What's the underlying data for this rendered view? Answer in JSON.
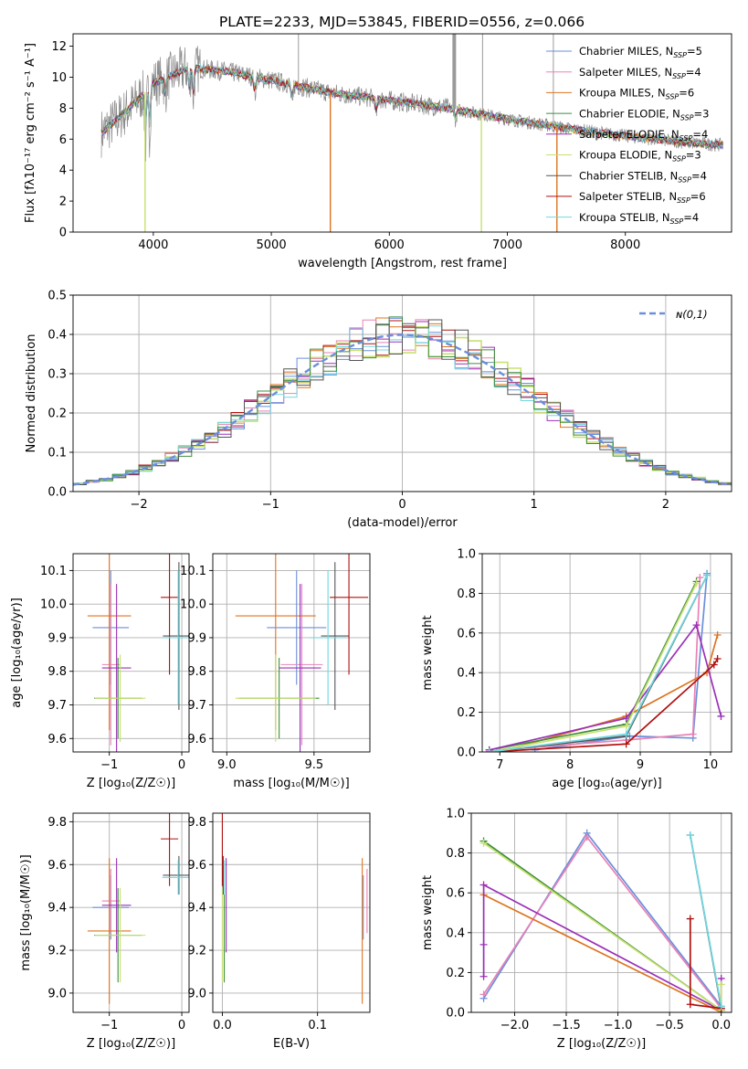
{
  "figure_title": "PLATE=2233, MJD=53845, FIBERID=0556, z=0.066",
  "models": [
    {
      "name": "Chabrier MILES",
      "nssp": "5",
      "color": "#6a8fdc"
    },
    {
      "name": "Salpeter MILES",
      "nssp": "4",
      "color": "#e882b6"
    },
    {
      "name": "Kroupa MILES",
      "nssp": "6",
      "color": "#dd7420"
    },
    {
      "name": "Chabrier ELODIE",
      "nssp": "3",
      "color": "#3c8f3c"
    },
    {
      "name": "Salpeter ELODIE",
      "nssp": "4",
      "color": "#9b30b8"
    },
    {
      "name": "Kroupa ELODIE",
      "nssp": "3",
      "color": "#c8e070"
    },
    {
      "name": "Chabrier STELIB",
      "nssp": "4",
      "color": "#555555"
    },
    {
      "name": "Salpeter STELIB",
      "nssp": "6",
      "color": "#b01010"
    },
    {
      "name": "Kroupa STELIB",
      "nssp": "4",
      "color": "#70d8e0"
    }
  ],
  "chart_data": [
    {
      "id": "spectrum",
      "type": "line",
      "title": "PLATE=2233, MJD=53845, FIBERID=0556, z=0.066",
      "xlabel": "wavelength [Angstrom, rest frame]",
      "ylabel": "Flux [fλ10⁻¹⁷ erg cm⁻² s⁻¹ A⁻¹]",
      "xlim": [
        3320,
        8900
      ],
      "ylim": [
        0,
        12.8
      ],
      "xticks": [
        4000,
        5000,
        6000,
        7000,
        8000
      ],
      "yticks": [
        0,
        2,
        4,
        6,
        8,
        10,
        12
      ],
      "continuum": {
        "x": [
          3560,
          3800,
          4000,
          4300,
          4600,
          5000,
          5500,
          6000,
          6500,
          7000,
          7500,
          8000,
          8500,
          8830
        ],
        "y": [
          6.4,
          8.0,
          9.6,
          10.6,
          10.4,
          9.8,
          9.0,
          8.5,
          8.0,
          7.3,
          6.7,
          6.2,
          5.8,
          5.6
        ]
      },
      "data_spikes": [
        {
          "x": 5230,
          "y": 12.8
        },
        {
          "x": 6550,
          "y": 12.8
        },
        {
          "x": 6790,
          "y": 12.8
        },
        {
          "x": 7390,
          "y": 12.8
        }
      ],
      "model_dips": [
        {
          "x": 3930,
          "y": 0,
          "color": "#c8e070"
        },
        {
          "x": 5500,
          "y": 0,
          "color": "#dd7420"
        },
        {
          "x": 6780,
          "y": 0,
          "color": "#c8e070"
        },
        {
          "x": 7420,
          "y": 0,
          "color": "#dd7420"
        }
      ],
      "grid": false,
      "legend_position": "top-right"
    },
    {
      "id": "residual-distribution",
      "type": "line",
      "xlabel": "(data-model)/error",
      "ylabel": "Normed distribution",
      "xlim": [
        -2.5,
        2.5
      ],
      "ylim": [
        0,
        0.5
      ],
      "xticks": [
        -2,
        -1,
        0,
        1,
        2
      ],
      "yticks": [
        0,
        0.1,
        0.2,
        0.3,
        0.4,
        0.5
      ],
      "grid": true,
      "legend": "ɴ(0,1)",
      "legend_position": "top-right",
      "reference_curve": "normal distribution, mean 0, sigma 1",
      "histogram_bin_width": 0.1
    },
    {
      "id": "age-vs-metallicity",
      "type": "scatter",
      "xlabel": "Z [log₁₀(Z/Z☉)]",
      "ylabel": "age  [log₁₀(age/yr)]",
      "xlim": [
        -1.5,
        0.1
      ],
      "ylim": [
        9.56,
        10.15
      ],
      "xticks": [
        -1,
        0
      ],
      "yticks": [
        9.6,
        9.7,
        9.8,
        9.9,
        10.0,
        10.1
      ],
      "grid": true,
      "points": [
        {
          "model": "Chabrier MILES",
          "x": -0.98,
          "y": 9.93,
          "xerr": 0.25,
          "yerr": 0.17
        },
        {
          "model": "Salpeter MILES",
          "x": -0.98,
          "y": 9.82,
          "xerr": 0.12,
          "yerr": 0.24
        },
        {
          "model": "Kroupa MILES",
          "x": -1.0,
          "y": 9.965,
          "xerr": 0.3,
          "yerr": 0.34
        },
        {
          "model": "Chabrier ELODIE",
          "x": -0.88,
          "y": 9.72,
          "xerr": 0.33,
          "yerr": 0.12
        },
        {
          "model": "Salpeter ELODIE",
          "x": -0.9,
          "y": 9.81,
          "xerr": 0.2,
          "yerr": 0.25
        },
        {
          "model": "Kroupa ELODIE",
          "x": -0.85,
          "y": 9.72,
          "xerr": 0.35,
          "yerr": 0.13
        },
        {
          "model": "Chabrier STELIB",
          "x": -0.04,
          "y": 9.905,
          "xerr": 0.22,
          "yerr": 0.22
        },
        {
          "model": "Salpeter STELIB",
          "x": -0.17,
          "y": 10.02,
          "xerr": 0.12,
          "yerr": 0.23
        },
        {
          "model": "Kroupa STELIB",
          "x": -0.05,
          "y": 9.9,
          "xerr": 0.22,
          "yerr": 0.2
        }
      ]
    },
    {
      "id": "age-vs-mass",
      "type": "scatter",
      "xlabel": "mass [log₁₀(M/M☉)]",
      "ylabel": "",
      "xlim": [
        8.92,
        9.82
      ],
      "ylim": [
        9.56,
        10.15
      ],
      "xticks": [
        9.0,
        9.5
      ],
      "yticks": [
        9.6,
        9.7,
        9.8,
        9.9,
        10.0,
        10.1
      ],
      "grid": true,
      "points": [
        {
          "model": "Chabrier MILES",
          "x": 9.4,
          "y": 9.93,
          "xerr": 0.17,
          "yerr": 0.17
        },
        {
          "model": "Salpeter MILES",
          "x": 9.43,
          "y": 9.82,
          "xerr": 0.12,
          "yerr": 0.24
        },
        {
          "model": "Kroupa MILES",
          "x": 9.28,
          "y": 9.965,
          "xerr": 0.23,
          "yerr": 0.34
        },
        {
          "model": "Chabrier ELODIE",
          "x": 9.3,
          "y": 9.72,
          "xerr": 0.23,
          "yerr": 0.12
        },
        {
          "model": "Salpeter ELODIE",
          "x": 9.42,
          "y": 9.81,
          "xerr": 0.12,
          "yerr": 0.25
        },
        {
          "model": "Kroupa ELODIE",
          "x": 9.28,
          "y": 9.72,
          "xerr": 0.23,
          "yerr": 0.13
        },
        {
          "model": "Chabrier STELIB",
          "x": 9.62,
          "y": 9.905,
          "xerr": 0.08,
          "yerr": 0.22
        },
        {
          "model": "Salpeter STELIB",
          "x": 9.7,
          "y": 10.02,
          "xerr": 0.11,
          "yerr": 0.23
        },
        {
          "model": "Kroupa STELIB",
          "x": 9.58,
          "y": 9.9,
          "xerr": 0.1,
          "yerr": 0.2
        }
      ]
    },
    {
      "id": "mass-weight-vs-age",
      "type": "line",
      "xlabel": "age  [log₁₀(age/yr)]",
      "ylabel": "mass weight",
      "xlim": [
        6.75,
        10.3
      ],
      "ylim": [
        0,
        1.0
      ],
      "xticks": [
        7,
        8,
        9,
        10
      ],
      "yticks": [
        0.0,
        0.2,
        0.4,
        0.6,
        0.8,
        1.0
      ],
      "grid": true,
      "series": [
        {
          "model": "Chabrier MILES",
          "x": [
            7.5,
            8.85,
            9.75,
            9.95
          ],
          "y": [
            0.01,
            0.08,
            0.07,
            0.9
          ]
        },
        {
          "model": "Salpeter MILES",
          "x": [
            7.0,
            8.8,
            9.75,
            9.85
          ],
          "y": [
            0.01,
            0.06,
            0.09,
            0.88
          ]
        },
        {
          "model": "Kroupa MILES",
          "x": [
            7.0,
            8.8,
            9.95,
            10.1
          ],
          "y": [
            0.0,
            0.18,
            0.4,
            0.59
          ]
        },
        {
          "model": "Chabrier ELODIE",
          "x": [
            6.85,
            8.8,
            9.8
          ],
          "y": [
            0.01,
            0.14,
            0.86
          ]
        },
        {
          "model": "Salpeter ELODIE",
          "x": [
            6.85,
            8.8,
            9.8,
            10.15
          ],
          "y": [
            0.01,
            0.17,
            0.64,
            0.18
          ]
        },
        {
          "model": "Kroupa ELODIE",
          "x": [
            6.85,
            8.8,
            9.8
          ],
          "y": [
            0.0,
            0.13,
            0.85
          ]
        },
        {
          "model": "Chabrier STELIB",
          "x": [
            6.85,
            8.8,
            9.95
          ],
          "y": [
            0.0,
            0.08,
            0.89
          ]
        },
        {
          "model": "Salpeter STELIB",
          "x": [
            6.85,
            8.8,
            10.05,
            10.1
          ],
          "y": [
            0.0,
            0.04,
            0.44,
            0.47
          ]
        },
        {
          "model": "Kroupa STELIB",
          "x": [
            6.85,
            8.8,
            9.95
          ],
          "y": [
            0.0,
            0.09,
            0.89
          ]
        }
      ]
    },
    {
      "id": "mass-vs-metallicity",
      "type": "scatter",
      "xlabel": "Z [log₁₀(Z/Z☉)]",
      "ylabel": "mass [log₁₀(M/M☉)]",
      "xlim": [
        -1.5,
        0.1
      ],
      "ylim": [
        8.91,
        9.84
      ],
      "xticks": [
        -1,
        0
      ],
      "yticks": [
        9.0,
        9.2,
        9.4,
        9.6,
        9.8
      ],
      "grid": true,
      "points": [
        {
          "model": "Chabrier MILES",
          "x": -0.98,
          "y": 9.4,
          "xerr": 0.25,
          "yerr": 0.15
        },
        {
          "model": "Salpeter MILES",
          "x": -0.98,
          "y": 9.43,
          "xerr": 0.12,
          "yerr": 0.15
        },
        {
          "model": "Kroupa MILES",
          "x": -1.0,
          "y": 9.29,
          "xerr": 0.3,
          "yerr": 0.34
        },
        {
          "model": "Chabrier ELODIE",
          "x": -0.88,
          "y": 9.27,
          "xerr": 0.33,
          "yerr": 0.22
        },
        {
          "model": "Salpeter ELODIE",
          "x": -0.9,
          "y": 9.41,
          "xerr": 0.2,
          "yerr": 0.22
        },
        {
          "model": "Kroupa ELODIE",
          "x": -0.85,
          "y": 9.27,
          "xerr": 0.35,
          "yerr": 0.22
        },
        {
          "model": "Chabrier STELIB",
          "x": -0.04,
          "y": 9.55,
          "xerr": 0.22,
          "yerr": 0.09
        },
        {
          "model": "Salpeter STELIB",
          "x": -0.17,
          "y": 9.72,
          "xerr": 0.12,
          "yerr": 0.22
        },
        {
          "model": "Kroupa STELIB",
          "x": -0.05,
          "y": 9.54,
          "xerr": 0.22,
          "yerr": 0.08
        }
      ]
    },
    {
      "id": "mass-vs-extinction",
      "type": "scatter",
      "xlabel": "E(B-V)",
      "ylabel": "",
      "xlim": [
        -0.01,
        0.155
      ],
      "ylim": [
        8.91,
        9.84
      ],
      "xticks": [
        0.0,
        0.1
      ],
      "yticks": [
        9.0,
        9.2,
        9.4,
        9.6,
        9.8
      ],
      "grid": true,
      "points": [
        {
          "model": "Chabrier MILES",
          "x": 0.148,
          "y": 9.4,
          "yerr": 0.15
        },
        {
          "model": "Salpeter MILES",
          "x": 0.152,
          "y": 9.43,
          "yerr": 0.15
        },
        {
          "model": "Kroupa MILES",
          "x": 0.147,
          "y": 9.29,
          "yerr": 0.34
        },
        {
          "model": "Chabrier ELODIE",
          "x": 0.002,
          "y": 9.27,
          "yerr": 0.22
        },
        {
          "model": "Salpeter ELODIE",
          "x": 0.004,
          "y": 9.41,
          "yerr": 0.22
        },
        {
          "model": "Kroupa ELODIE",
          "x": 0.0,
          "y": 9.27,
          "yerr": 0.22
        },
        {
          "model": "Chabrier STELIB",
          "x": 0.001,
          "y": 9.55,
          "yerr": 0.09
        },
        {
          "model": "Salpeter STELIB",
          "x": 0.0,
          "y": 9.72,
          "yerr": 0.22
        },
        {
          "model": "Kroupa STELIB",
          "x": 0.002,
          "y": 9.54,
          "yerr": 0.08
        }
      ]
    },
    {
      "id": "mass-weight-vs-metallicity",
      "type": "line",
      "xlabel": "Z [log₁₀(Z/Z☉)]",
      "ylabel": "mass weight",
      "xlim": [
        -2.42,
        0.1
      ],
      "ylim": [
        0,
        1.0
      ],
      "xticks": [
        -2.0,
        -1.5,
        -1.0,
        -0.5,
        0.0
      ],
      "yticks": [
        0.0,
        0.2,
        0.4,
        0.6,
        0.8,
        1.0
      ],
      "grid": true,
      "series": [
        {
          "model": "Chabrier MILES",
          "x": [
            -2.3,
            -1.3,
            0.0
          ],
          "y": [
            0.07,
            0.9,
            0.03
          ]
        },
        {
          "model": "Salpeter MILES",
          "x": [
            -2.3,
            -1.3,
            0.0
          ],
          "y": [
            0.09,
            0.88,
            0.02
          ]
        },
        {
          "model": "Kroupa MILES",
          "x": [
            -2.3,
            0.0
          ],
          "y": [
            0.59,
            0.0
          ]
        },
        {
          "model": "Chabrier ELODIE",
          "x": [
            -2.3,
            0.0
          ],
          "y": [
            0.86,
            0.01
          ]
        },
        {
          "model": "Salpeter ELODIE",
          "x": [
            -2.3,
            -2.3,
            -2.3,
            0.0,
            0.0
          ],
          "y": [
            0.18,
            0.34,
            0.64,
            0.01,
            0.17
          ]
        },
        {
          "model": "Kroupa ELODIE",
          "x": [
            -2.3,
            0.0,
            0.0
          ],
          "y": [
            0.85,
            0.01,
            0.14
          ]
        },
        {
          "model": "Chabrier STELIB",
          "x": [
            -0.3,
            0.0
          ],
          "y": [
            0.89,
            0.02
          ]
        },
        {
          "model": "Salpeter STELIB",
          "x": [
            -0.3,
            -0.3,
            0.0
          ],
          "y": [
            0.47,
            0.04,
            0.02
          ]
        },
        {
          "model": "Kroupa STELIB",
          "x": [
            -0.3,
            0.0
          ],
          "y": [
            0.89,
            0.03
          ]
        }
      ]
    }
  ]
}
